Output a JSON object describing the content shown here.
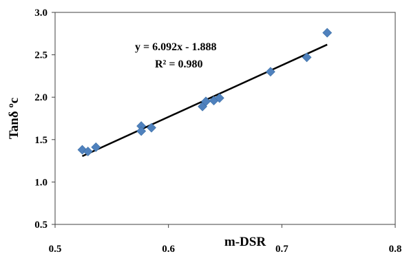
{
  "chart_data": {
    "type": "scatter",
    "title": "",
    "xlabel": "m-DSR",
    "ylabel": "Tanδ ºc",
    "xlim": [
      0.5,
      0.8
    ],
    "ylim": [
      0.5,
      3.0
    ],
    "x_ticks": [
      "0.5",
      "0.6",
      "0.7",
      "0.8"
    ],
    "y_ticks": [
      "0.5",
      "1.0",
      "1.5",
      "2.0",
      "2.5",
      "3.0"
    ],
    "grid": false,
    "legend": "none",
    "marker": "diamond",
    "marker_color": "#4F81BD",
    "trendline_color": "#000000",
    "series": [
      {
        "points": [
          {
            "x": 0.524,
            "y": 1.38
          },
          {
            "x": 0.529,
            "y": 1.36
          },
          {
            "x": 0.536,
            "y": 1.41
          },
          {
            "x": 0.576,
            "y": 1.66
          },
          {
            "x": 0.576,
            "y": 1.6
          },
          {
            "x": 0.585,
            "y": 1.64
          },
          {
            "x": 0.63,
            "y": 1.89
          },
          {
            "x": 0.633,
            "y": 1.95
          },
          {
            "x": 0.64,
            "y": 1.96
          },
          {
            "x": 0.645,
            "y": 1.99
          },
          {
            "x": 0.69,
            "y": 2.3
          },
          {
            "x": 0.722,
            "y": 2.47
          },
          {
            "x": 0.74,
            "y": 2.76
          }
        ]
      }
    ],
    "trendline": {
      "slope": 6.092,
      "intercept": -1.888,
      "x_start": 0.524,
      "x_end": 0.74,
      "equation": "y = 6.092x - 1.888",
      "r_squared": "R² = 0.980"
    }
  }
}
